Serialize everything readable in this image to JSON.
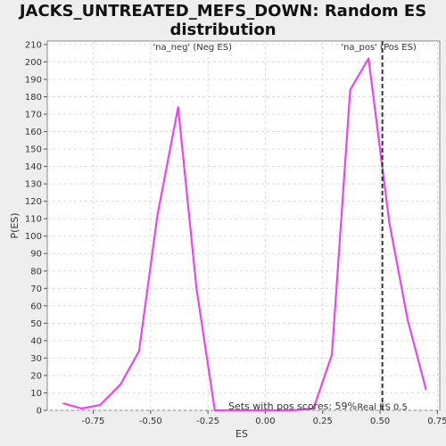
{
  "chart_data": {
    "type": "line",
    "title": "JACKS_UNTREATED_MEFS_DOWN: Random ES\ndistribution",
    "xlabel": "ES",
    "ylabel": "P(ES)",
    "xlim": [
      -0.95,
      0.76
    ],
    "ylim": [
      0,
      212
    ],
    "x_ticks": [
      -0.75,
      -0.5,
      -0.25,
      0.0,
      0.25,
      0.5,
      0.75
    ],
    "x_tick_labels": [
      "-0.75",
      "-0.50",
      "-0.25",
      "0.00",
      "0.25",
      "0.50",
      "0.75"
    ],
    "y_ticks": [
      0,
      10,
      20,
      30,
      40,
      50,
      60,
      70,
      80,
      90,
      100,
      110,
      120,
      130,
      140,
      150,
      160,
      170,
      180,
      190,
      200,
      210
    ],
    "grid": true,
    "series": [
      {
        "x": [
          -0.88,
          -0.8,
          -0.72,
          -0.63,
          -0.55,
          -0.47,
          -0.38,
          -0.3,
          -0.22,
          -0.13,
          -0.05,
          0.04,
          0.12,
          0.21,
          0.29,
          0.37,
          0.45,
          0.54,
          0.62,
          0.7
        ],
        "y": [
          4,
          1,
          3,
          15,
          34,
          112,
          174,
          70,
          0,
          0,
          0,
          0,
          0,
          1,
          32,
          184,
          202,
          108,
          52,
          12
        ],
        "color": "#ee44ee"
      }
    ],
    "annotations": [
      {
        "text": "'na_neg' (Neg ES)",
        "x": -0.49,
        "y": 207,
        "color": "#3333bb"
      },
      {
        "text": "'na_pos' (Pos ES)",
        "x": 0.33,
        "y": 207,
        "color": "#dd3333"
      }
    ],
    "reference_line": {
      "x": 0.51,
      "label": "Real ES 0.5",
      "color": "#333333"
    },
    "footnote": "Sets with pos scores: 59%"
  }
}
